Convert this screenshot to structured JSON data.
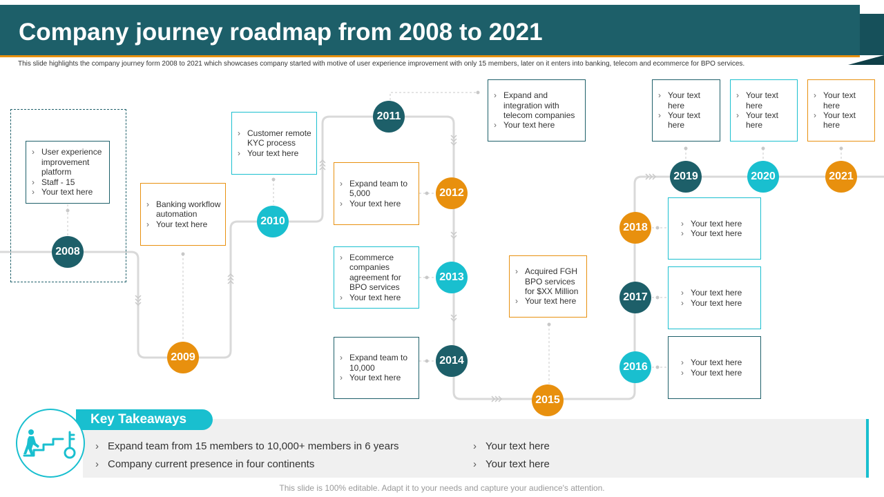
{
  "header": {
    "title": "Company journey roadmap from 2008 to 2021",
    "subtitle": "This slide highlights the company journey form 2008 to 2021 which showcases company started with motive of user experience improvement with only 15 members, later on it enters into banking, telecom and ecommerce for BPO services."
  },
  "milestones": [
    {
      "year": "2008",
      "items": [
        "User experience improvement platform",
        "Staff - 15",
        "Your text here"
      ]
    },
    {
      "year": "2009",
      "items": [
        "Banking workflow automation",
        "Your text here"
      ]
    },
    {
      "year": "2010",
      "items": [
        "Customer remote KYC process",
        "Your text here"
      ]
    },
    {
      "year": "2011",
      "items": [
        "Expand and integration with telecom companies",
        "Your text here"
      ]
    },
    {
      "year": "2012",
      "items": [
        "Expand team to 5,000",
        "Your text here"
      ]
    },
    {
      "year": "2013",
      "items": [
        "Ecommerce companies agreement for BPO services",
        "Your text here"
      ]
    },
    {
      "year": "2014",
      "items": [
        "Expand team to 10,000",
        "Your text here"
      ]
    },
    {
      "year": "2015",
      "items": [
        "Acquired FGH BPO services for $XX Million",
        "Your text here"
      ]
    },
    {
      "year": "2016",
      "items": [
        "Your text here",
        "Your text here"
      ]
    },
    {
      "year": "2017",
      "items": [
        "Your text here",
        "Your text here"
      ]
    },
    {
      "year": "2018",
      "items": [
        "Your text here",
        "Your text here"
      ]
    },
    {
      "year": "2019",
      "items": [
        "Your text here",
        "Your text here"
      ]
    },
    {
      "year": "2020",
      "items": [
        "Your text here",
        "Your text here"
      ]
    },
    {
      "year": "2021",
      "items": [
        "Your text here",
        "Your text here"
      ]
    }
  ],
  "takeaways": {
    "title": "Key Takeaways",
    "left": [
      "Expand team from 15 members to 10,000+ members in 6 years",
      "Company current presence in four continents"
    ],
    "right": [
      "Your text here",
      "Your text here"
    ]
  },
  "footer": "This slide is 100% editable. Adapt it to your needs and capture your audience's attention.",
  "colors": {
    "dark": "#1d5f69",
    "teal": "#19bfcf",
    "orange": "#e8900e"
  }
}
